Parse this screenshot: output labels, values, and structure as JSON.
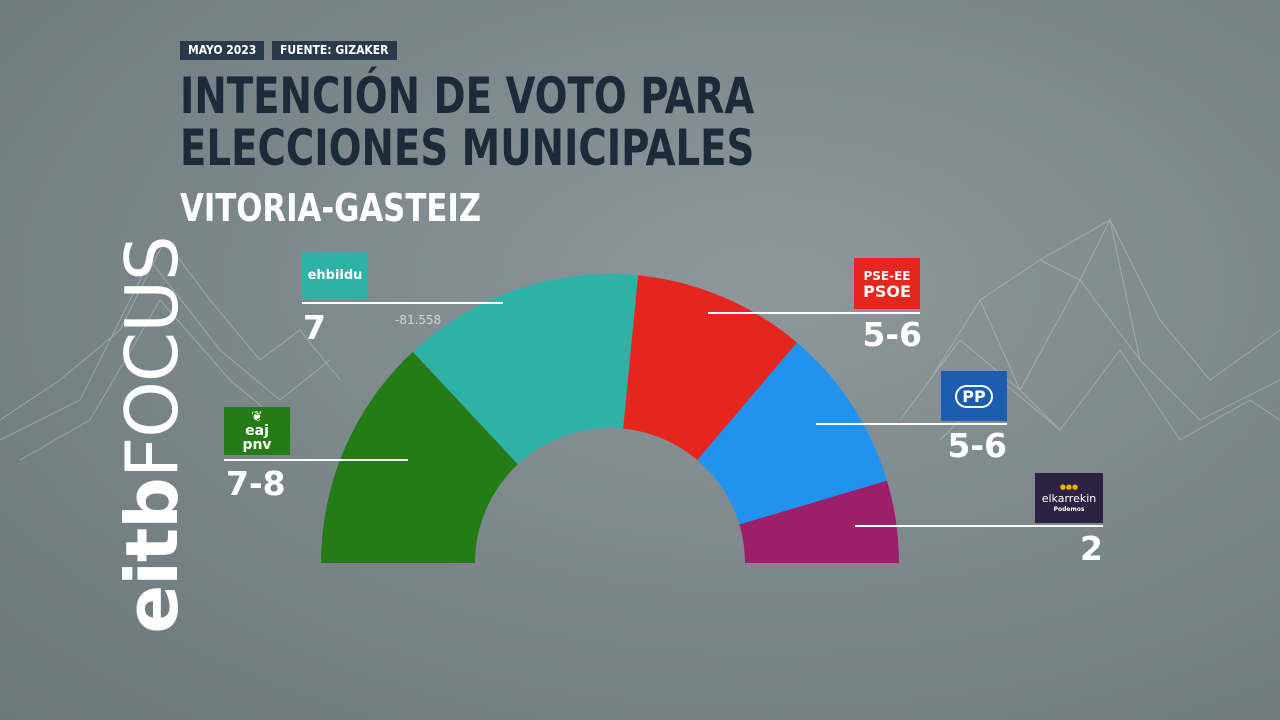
{
  "header": {
    "date_tag": "MAYO 2023",
    "source_tag": "FUENTE: GIZAKER",
    "title": "INTENCIÓN DE VOTO PARA ELECCIONES MUNICIPALES",
    "subtitle": "VITORIA-GASTEIZ"
  },
  "brand": {
    "part1": "eitb",
    "part2": "FOCUS"
  },
  "annotation": "-81.558",
  "colors": {
    "eaj_pnv": "#257c16",
    "ehbildu": "#2eb1a7",
    "psoe": "#e5261f",
    "pp": "#1f93ee",
    "elkarrekin": "#9d1f6b"
  },
  "chart_data": {
    "type": "pie",
    "title": "INTENCIÓN DE VOTO PARA ELECCIONES MUNICIPALES",
    "subtitle": "VITORIA-GASTEIZ",
    "parties": [
      {
        "name": "EAJ-PNV",
        "logo_text": [
          "eaj",
          "pnv"
        ],
        "seats": "7-8",
        "share": 0.261,
        "color": "#257c16"
      },
      {
        "name": "EH Bildu",
        "logo_text": [
          "ehbildu"
        ],
        "seats": "7",
        "share": 0.27,
        "color": "#2eb1a7"
      },
      {
        "name": "PSE-EE PSOE",
        "logo_text": [
          "PSE-EE",
          "PSOE"
        ],
        "seats": "5-6",
        "share": 0.193,
        "color": "#e5261f"
      },
      {
        "name": "PP",
        "logo_text": [
          "PP"
        ],
        "seats": "5-6",
        "share": 0.184,
        "color": "#1f93ee"
      },
      {
        "name": "Elkarrekin",
        "logo_text": [
          "elkarrekin",
          "Podemos"
        ],
        "seats": "2",
        "share": 0.092,
        "color": "#9d1f6b"
      }
    ]
  }
}
